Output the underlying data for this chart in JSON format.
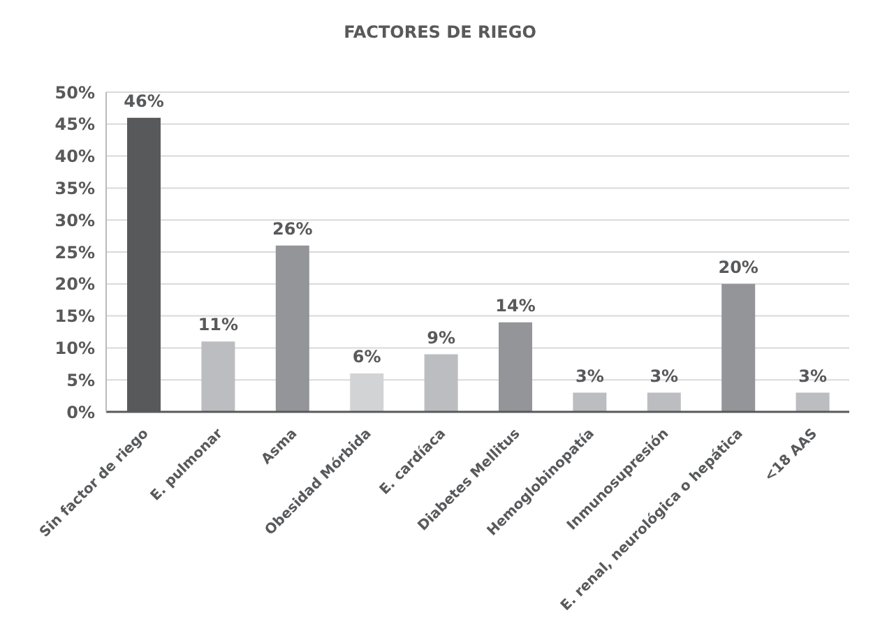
{
  "chart_data": {
    "type": "bar",
    "title": "FACTORES DE RIEGO",
    "categories": [
      "Sin factor de riego",
      "E. pulmonar",
      "Asma",
      "Obesidad Mórbida",
      "E. cardíaca",
      "Diabetes Mellitus",
      "Hemoglobinopatía",
      "Inmunosupresión",
      "E. renal, neurológica o hepática",
      "<18 AAS"
    ],
    "values": [
      46,
      11,
      26,
      6,
      9,
      14,
      3,
      3,
      20,
      3
    ],
    "colors": [
      "#58595b",
      "#bcbdc0",
      "#939598",
      "#d1d3d4",
      "#bcbdc0",
      "#939598",
      "#bcbdc0",
      "#bcbdc0",
      "#939598",
      "#bcbdc0"
    ],
    "value_labels": [
      "46%",
      "11%",
      "26%",
      "6%",
      "9%",
      "14%",
      "3%",
      "3%",
      "20%",
      "3%"
    ],
    "ylim": [
      0,
      50
    ],
    "yticks": [
      {
        "value": 0,
        "label": "0%"
      },
      {
        "value": 5,
        "label": "5%"
      },
      {
        "value": 10,
        "label": "10%"
      },
      {
        "value": 15,
        "label": "15%"
      },
      {
        "value": 20,
        "label": "20%"
      },
      {
        "value": 25,
        "label": "25%"
      },
      {
        "value": 30,
        "label": "30%"
      },
      {
        "value": 35,
        "label": "35%"
      },
      {
        "value": 40,
        "label": "40%"
      },
      {
        "value": 45,
        "label": "45%"
      },
      {
        "value": 50,
        "label": "50%"
      }
    ],
    "grid": "y"
  }
}
